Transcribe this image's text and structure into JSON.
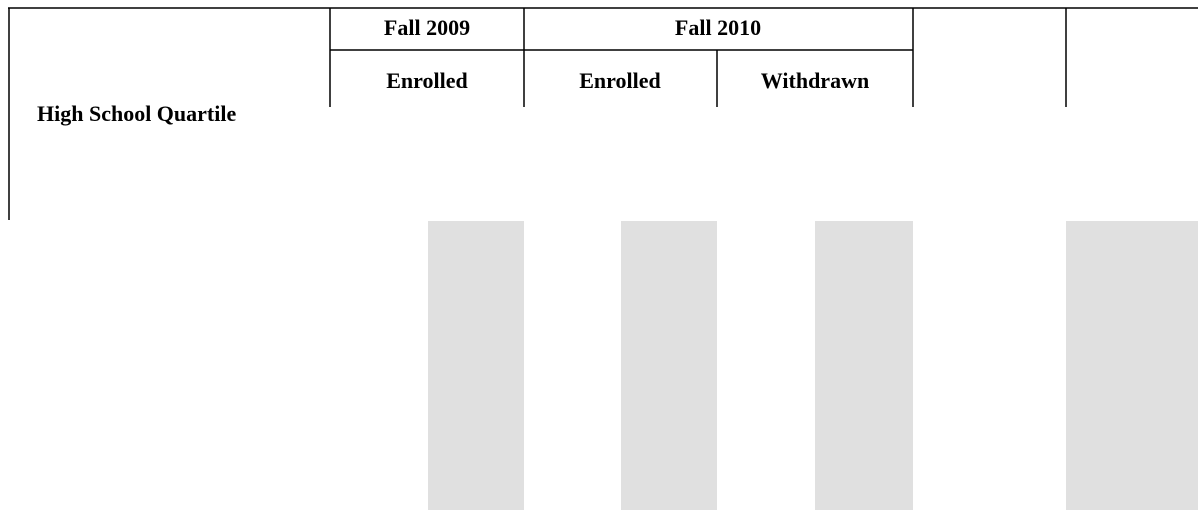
{
  "table": {
    "row_header": "High School Quartile",
    "groups": [
      {
        "label": "Fall 2009",
        "columns": [
          "Enrolled"
        ]
      },
      {
        "label": "Fall 2010",
        "columns": [
          "Enrolled",
          "Withdrawn"
        ]
      }
    ]
  }
}
